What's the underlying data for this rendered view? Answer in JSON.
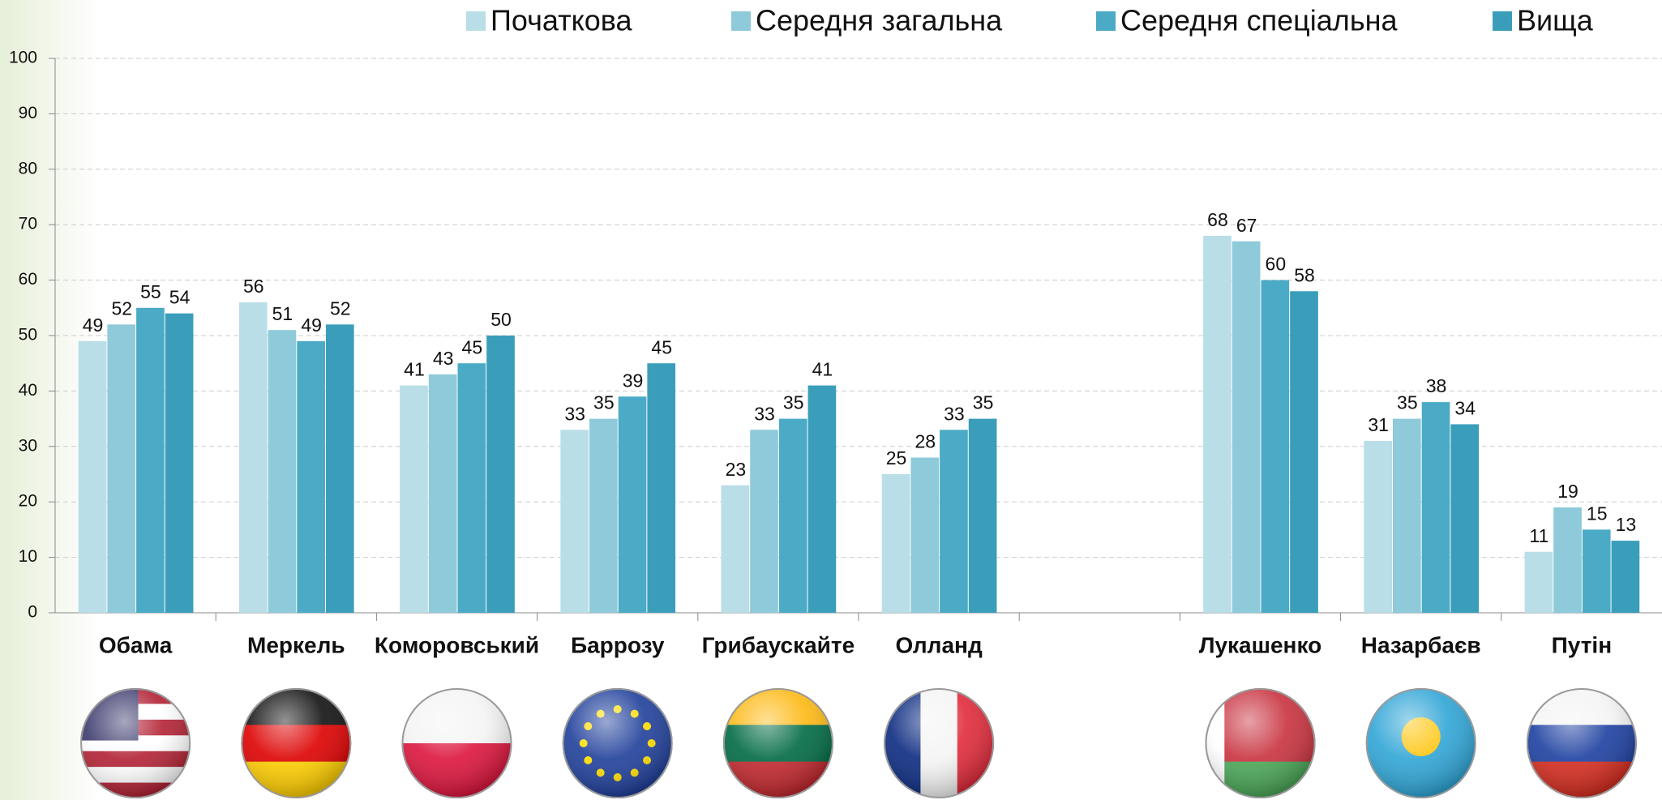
{
  "chart_data": {
    "type": "bar",
    "categories": [
      "Обама",
      "Меркель",
      "Коморовський",
      "Баррозу",
      "Грибаускайте",
      "Олланд",
      null,
      "Лукашенко",
      "Назарбаєв",
      "Путін"
    ],
    "series": [
      {
        "name": "Початкова",
        "color": "#b9dee7",
        "values": [
          49,
          56,
          41,
          33,
          23,
          25,
          null,
          68,
          31,
          11
        ]
      },
      {
        "name": "Середня загальна",
        "color": "#8ecada",
        "values": [
          52,
          51,
          43,
          35,
          33,
          28,
          null,
          67,
          35,
          19
        ]
      },
      {
        "name": "Середня спеціальна",
        "color": "#4babc6",
        "values": [
          55,
          49,
          45,
          39,
          35,
          33,
          null,
          60,
          38,
          15
        ]
      },
      {
        "name": "Вища",
        "color": "#3a9ebb",
        "values": [
          54,
          52,
          50,
          45,
          41,
          35,
          null,
          58,
          34,
          13
        ]
      }
    ],
    "ylim": [
      0,
      100
    ],
    "yticks": [
      0,
      10,
      20,
      30,
      40,
      50,
      60,
      70,
      80,
      90,
      100
    ],
    "grid": true
  }
}
